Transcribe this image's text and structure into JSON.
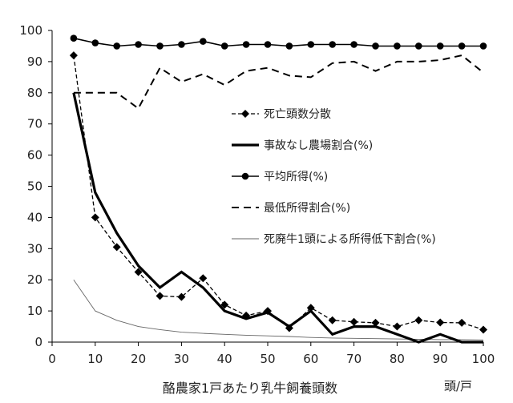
{
  "chart_data": {
    "type": "line",
    "title": "",
    "xlabel": "酪農家1戸あたり乳牛飼養頭数",
    "xunit": "頭/戸",
    "ylabel": "",
    "xlim": [
      0,
      100
    ],
    "ylim": [
      0,
      100
    ],
    "xticks": [
      0,
      10,
      20,
      30,
      40,
      50,
      60,
      70,
      80,
      90,
      100
    ],
    "yticks": [
      0,
      10,
      20,
      30,
      40,
      50,
      60,
      70,
      80,
      90,
      100
    ],
    "grid": false,
    "legend_position": "center-right",
    "x": [
      5,
      10,
      15,
      20,
      25,
      30,
      35,
      40,
      45,
      50,
      55,
      60,
      65,
      70,
      75,
      80,
      85,
      90,
      95,
      100
    ],
    "series": [
      {
        "name": "死亡頭数分散",
        "style": "dashed-diamond",
        "color": "#000000",
        "values": [
          92,
          40,
          30.5,
          22.5,
          14.8,
          14.5,
          20.5,
          12,
          8.5,
          10,
          4.5,
          11,
          7,
          6.5,
          6.2,
          5,
          7,
          6.3,
          6.2,
          4
        ]
      },
      {
        "name": "事故なし農場割合(%)",
        "style": "thick-solid",
        "color": "#000000",
        "values": [
          80,
          48,
          35,
          24.5,
          17.5,
          22.5,
          17.5,
          10,
          7.5,
          9.5,
          5,
          10,
          2.5,
          5,
          5,
          2.5,
          0,
          2.5,
          0,
          0
        ]
      },
      {
        "name": "平均所得(%)",
        "style": "solid-circle",
        "color": "#000000",
        "values": [
          97.5,
          96,
          95,
          95.5,
          95,
          95.5,
          96.5,
          95,
          95.5,
          95.5,
          95,
          95.5,
          95.5,
          95.5,
          95,
          95,
          95,
          95,
          95,
          95
        ]
      },
      {
        "name": "最低所得割合(%)",
        "style": "dashed",
        "color": "#000000",
        "values": [
          80,
          80,
          80,
          75,
          88,
          83.5,
          86,
          82.5,
          87,
          88,
          85.5,
          85,
          89.5,
          90,
          87,
          90,
          90,
          90.5,
          92,
          86.5
        ]
      },
      {
        "name": "死廃牛1頭による所得低下割合(%)",
        "style": "thin-solid",
        "color": "#555555",
        "values": [
          20,
          10,
          7,
          5,
          4,
          3.2,
          2.8,
          2.5,
          2.2,
          2,
          1.8,
          1.5,
          1.3,
          1.2,
          1.1,
          1,
          0.9,
          0.8,
          0.8,
          0.7
        ]
      }
    ]
  }
}
